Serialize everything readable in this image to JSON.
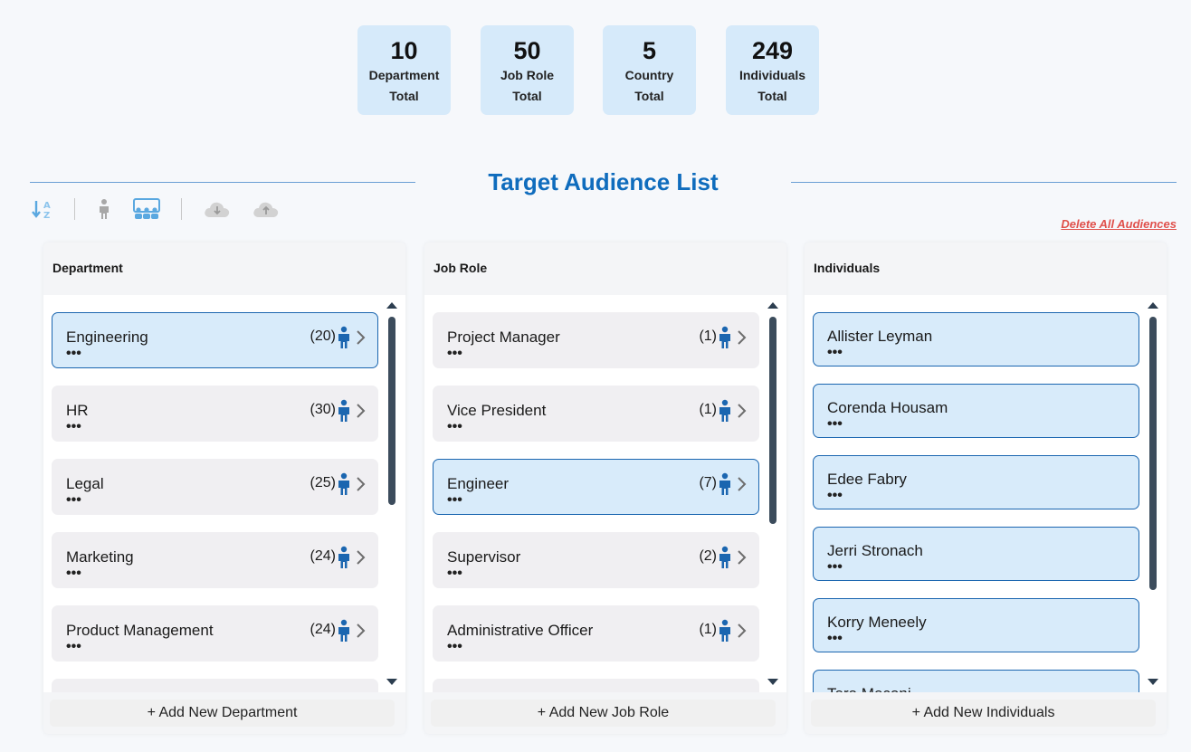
{
  "stats": [
    {
      "value": "10",
      "label1": "Department",
      "label2": "Total"
    },
    {
      "value": "50",
      "label1": "Job Role",
      "label2": "Total"
    },
    {
      "value": "5",
      "label1": "Country",
      "label2": "Total"
    },
    {
      "value": "249",
      "label1": "Individuals",
      "label2": "Total"
    }
  ],
  "title": "Target Audience List",
  "toolbar": {
    "icons": [
      "sort-az-icon",
      "person-icon",
      "group-icon",
      "cloud-download-icon",
      "cloud-upload-icon"
    ]
  },
  "delete_all_label": "Delete All Audiences",
  "colors": {
    "accent": "#0f6cbd",
    "card_bg": "#d6eafa",
    "selected_bg": "#d8ebfa",
    "item_bg": "#f0eff2",
    "danger": "#e0504b"
  },
  "department": {
    "header": "Department",
    "items": [
      {
        "name": "Engineering",
        "count": "(20)",
        "dots": "•••"
      },
      {
        "name": "HR",
        "count": "(30)",
        "dots": "•••"
      },
      {
        "name": "Legal",
        "count": "(25)",
        "dots": "•••"
      },
      {
        "name": "Marketing",
        "count": "(24)",
        "dots": "•••"
      },
      {
        "name": "Product Management",
        "count": "(24)",
        "dots": "•••"
      }
    ],
    "add_label": "+ Add New Department"
  },
  "job_role": {
    "header": "Job Role",
    "items": [
      {
        "name": "Project Manager",
        "count": "(1)",
        "dots": "•••"
      },
      {
        "name": "Vice President",
        "count": "(1)",
        "dots": "•••"
      },
      {
        "name": "Engineer",
        "count": "(7)",
        "dots": "•••"
      },
      {
        "name": "Supervisor",
        "count": "(2)",
        "dots": "•••"
      },
      {
        "name": "Administrative Officer",
        "count": "(1)",
        "dots": "•••"
      }
    ],
    "add_label": "+ Add New Job Role"
  },
  "individuals": {
    "header": "Individuals",
    "items": [
      {
        "name": "Allister Leyman",
        "dots": "•••"
      },
      {
        "name": "Corenda Housam",
        "dots": "•••"
      },
      {
        "name": "Edee Fabry",
        "dots": "•••"
      },
      {
        "name": "Jerri Stronach",
        "dots": "•••"
      },
      {
        "name": "Korry Meneely",
        "dots": "•••"
      },
      {
        "name": "Tera Meconi",
        "dots": "•••"
      }
    ],
    "add_label": "+ Add New Individuals"
  }
}
